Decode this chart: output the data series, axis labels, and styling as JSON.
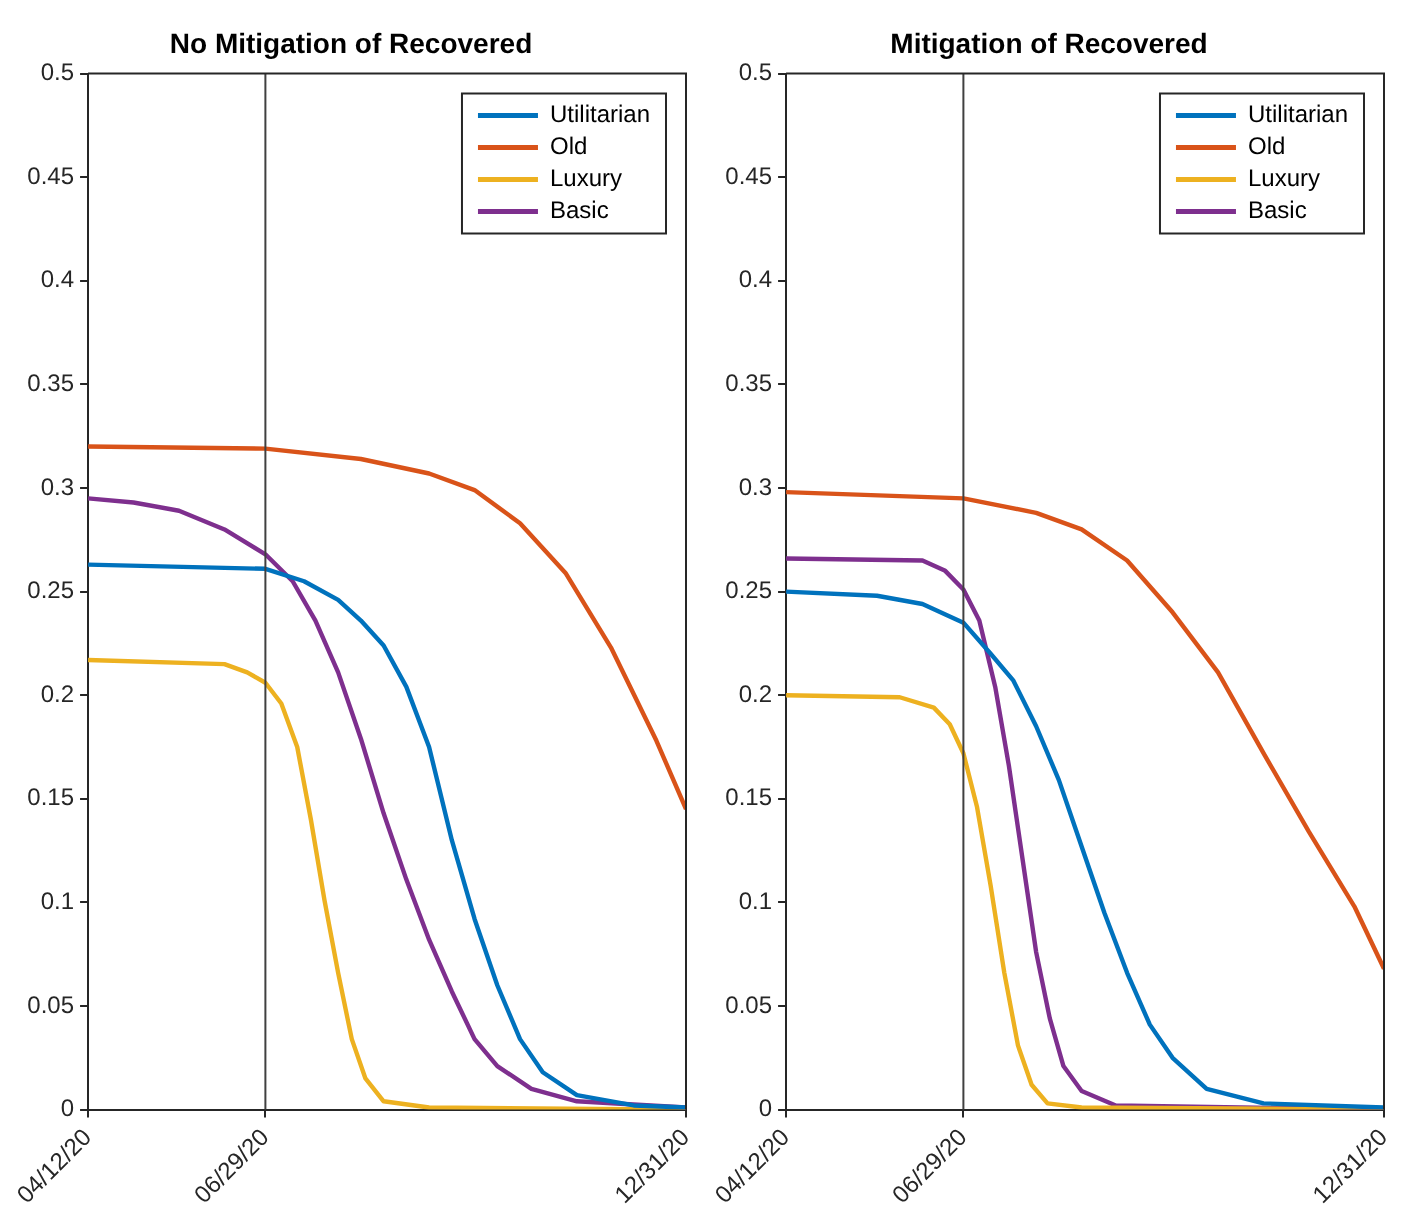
{
  "chart_data": [
    {
      "type": "line",
      "title": "No Mitigation of Recovered",
      "legend": "top right",
      "grid": false,
      "marker": "none",
      "line_style": "solid",
      "xlim": [
        "2020-04-12",
        "2020-12-31"
      ],
      "xticks": [
        {
          "value": "2020-04-12",
          "label": "04/12/20"
        },
        {
          "value": "2020-06-29",
          "label": "06/29/20"
        },
        {
          "value": "2020-12-31",
          "label": "12/31/20"
        }
      ],
      "ylim": [
        0,
        0.5
      ],
      "yticks": [
        0,
        0.05,
        0.1,
        0.15,
        0.2,
        0.25,
        0.3,
        0.35,
        0.4,
        0.45,
        0.5
      ],
      "ref_lines": [
        {
          "axis": "x",
          "value": "2020-06-29",
          "color": "#404040"
        }
      ],
      "series": [
        {
          "name": "Utilitarian",
          "color": "#0072bd",
          "x": [
            "2020-04-12",
            "2020-06-29",
            "2020-07-16",
            "2020-07-31",
            "2020-08-10",
            "2020-08-20",
            "2020-08-30",
            "2020-09-09",
            "2020-09-19",
            "2020-09-29",
            "2020-10-09",
            "2020-10-19",
            "2020-10-29",
            "2020-11-13",
            "2020-12-08",
            "2020-12-31"
          ],
          "values": [
            0.263,
            0.261,
            0.255,
            0.246,
            0.236,
            0.224,
            0.204,
            0.175,
            0.13,
            0.092,
            0.06,
            0.034,
            0.018,
            0.007,
            0.002,
            0.001
          ]
        },
        {
          "name": "Old",
          "color": "#d95319",
          "x": [
            "2020-04-12",
            "2020-06-29",
            "2020-08-10",
            "2020-09-09",
            "2020-09-29",
            "2020-10-19",
            "2020-11-08",
            "2020-11-28",
            "2020-12-18",
            "2020-12-31"
          ],
          "values": [
            0.32,
            0.319,
            0.314,
            0.307,
            0.299,
            0.283,
            0.259,
            0.223,
            0.178,
            0.145
          ]
        },
        {
          "name": "Luxury",
          "color": "#edb120",
          "x": [
            "2020-04-12",
            "2020-06-11",
            "2020-06-21",
            "2020-06-29",
            "2020-07-06",
            "2020-07-13",
            "2020-07-19",
            "2020-07-25",
            "2020-07-31",
            "2020-08-06",
            "2020-08-12",
            "2020-08-20",
            "2020-09-09",
            "2020-12-31"
          ],
          "values": [
            0.217,
            0.215,
            0.211,
            0.206,
            0.196,
            0.175,
            0.14,
            0.101,
            0.066,
            0.034,
            0.015,
            0.004,
            0.001,
            0
          ]
        },
        {
          "name": "Basic",
          "color": "#7e2f8e",
          "x": [
            "2020-04-12",
            "2020-05-02",
            "2020-05-22",
            "2020-06-11",
            "2020-06-29",
            "2020-07-11",
            "2020-07-21",
            "2020-07-31",
            "2020-08-10",
            "2020-08-20",
            "2020-08-30",
            "2020-09-09",
            "2020-09-19",
            "2020-09-29",
            "2020-10-09",
            "2020-10-24",
            "2020-11-13",
            "2020-12-31"
          ],
          "values": [
            0.295,
            0.293,
            0.289,
            0.28,
            0.268,
            0.255,
            0.236,
            0.211,
            0.179,
            0.143,
            0.111,
            0.082,
            0.057,
            0.034,
            0.021,
            0.01,
            0.004,
            0.001
          ]
        }
      ]
    },
    {
      "type": "line",
      "title": "Mitigation of Recovered",
      "legend": "top right",
      "grid": false,
      "marker": "none",
      "line_style": "solid",
      "xlim": [
        "2020-04-12",
        "2020-12-31"
      ],
      "xticks": [
        {
          "value": "2020-04-12",
          "label": "04/12/20"
        },
        {
          "value": "2020-06-29",
          "label": "06/29/20"
        },
        {
          "value": "2020-12-31",
          "label": "12/31/20"
        }
      ],
      "ylim": [
        0,
        0.5
      ],
      "yticks": [
        0,
        0.05,
        0.1,
        0.15,
        0.2,
        0.25,
        0.3,
        0.35,
        0.4,
        0.45,
        0.5
      ],
      "ref_lines": [
        {
          "axis": "x",
          "value": "2020-06-29",
          "color": "#404040"
        }
      ],
      "series": [
        {
          "name": "Utilitarian",
          "color": "#0072bd",
          "x": [
            "2020-04-12",
            "2020-05-22",
            "2020-06-11",
            "2020-06-29",
            "2020-07-11",
            "2020-07-21",
            "2020-07-31",
            "2020-08-10",
            "2020-08-20",
            "2020-08-30",
            "2020-09-09",
            "2020-09-19",
            "2020-09-29",
            "2020-10-14",
            "2020-11-08",
            "2020-12-31"
          ],
          "values": [
            0.25,
            0.248,
            0.244,
            0.235,
            0.22,
            0.207,
            0.185,
            0.159,
            0.127,
            0.095,
            0.066,
            0.041,
            0.025,
            0.01,
            0.003,
            0.001
          ]
        },
        {
          "name": "Old",
          "color": "#d95319",
          "x": [
            "2020-04-12",
            "2020-06-29",
            "2020-07-31",
            "2020-08-20",
            "2020-09-09",
            "2020-09-29",
            "2020-10-19",
            "2020-11-08",
            "2020-11-28",
            "2020-12-18",
            "2020-12-31"
          ],
          "values": [
            0.298,
            0.295,
            0.288,
            0.28,
            0.265,
            0.24,
            0.211,
            0.172,
            0.134,
            0.098,
            0.068
          ]
        },
        {
          "name": "Luxury",
          "color": "#edb120",
          "x": [
            "2020-04-12",
            "2020-06-01",
            "2020-06-16",
            "2020-06-23",
            "2020-06-29",
            "2020-07-05",
            "2020-07-11",
            "2020-07-17",
            "2020-07-23",
            "2020-07-29",
            "2020-08-05",
            "2020-08-20",
            "2020-12-31"
          ],
          "values": [
            0.2,
            0.199,
            0.194,
            0.186,
            0.172,
            0.146,
            0.108,
            0.066,
            0.031,
            0.012,
            0.003,
            0.001,
            0
          ]
        },
        {
          "name": "Basic",
          "color": "#7e2f8e",
          "x": [
            "2020-04-12",
            "2020-06-11",
            "2020-06-21",
            "2020-06-29",
            "2020-07-06",
            "2020-07-13",
            "2020-07-19",
            "2020-07-25",
            "2020-07-31",
            "2020-08-06",
            "2020-08-12",
            "2020-08-20",
            "2020-09-04",
            "2020-12-31"
          ],
          "values": [
            0.266,
            0.265,
            0.26,
            0.251,
            0.236,
            0.204,
            0.166,
            0.121,
            0.076,
            0.044,
            0.021,
            0.009,
            0.002,
            0
          ]
        }
      ]
    }
  ]
}
